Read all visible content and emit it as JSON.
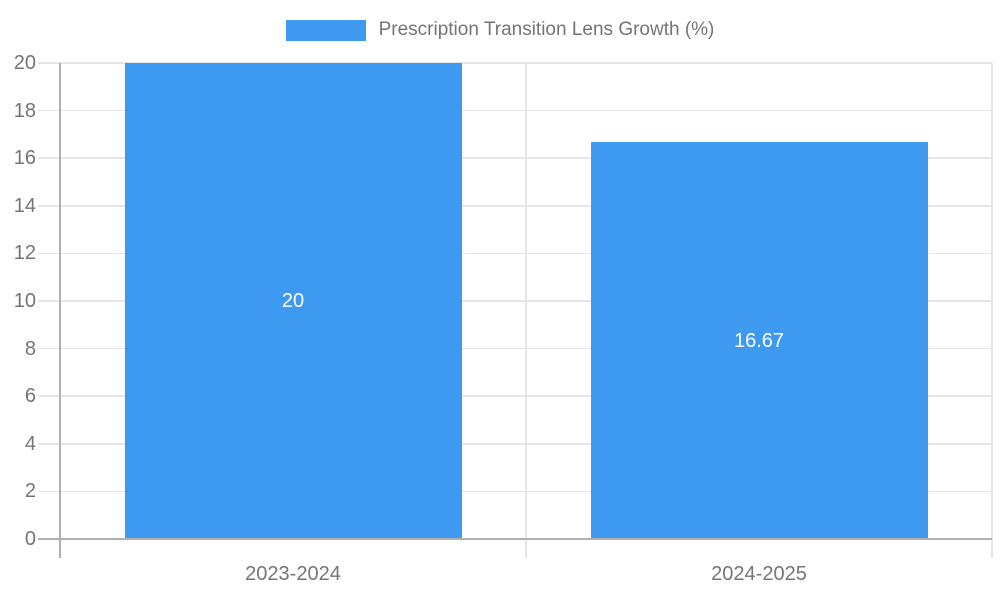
{
  "legend": {
    "label": "Prescription Transition Lens Growth (%)",
    "swatch_color": "#3D9AF0"
  },
  "chart_data": {
    "type": "bar",
    "title": "Prescription Transition Lens Growth (%)",
    "categories": [
      "2023-2024",
      "2024-2025"
    ],
    "values": [
      20,
      16.67
    ],
    "value_labels": [
      "20",
      "16.67"
    ],
    "series": [
      {
        "name": "Prescription Transition Lens Growth (%)",
        "values": [
          20,
          16.67
        ]
      }
    ],
    "xlabel": "",
    "ylabel": "",
    "ylim": [
      0,
      20
    ],
    "ytick_step": 2,
    "yticks": [
      0,
      2,
      4,
      6,
      8,
      10,
      12,
      14,
      16,
      18,
      20
    ],
    "grid": true,
    "legend_position": "top-center",
    "colors": {
      "bar": "#3D9AF0",
      "grid": "#E6E6E6",
      "axis": "#B0B0B0",
      "tick_label": "#757575",
      "category_label": "#757575",
      "data_label": "#FFFFFF",
      "background": "#FFFFFF"
    }
  }
}
